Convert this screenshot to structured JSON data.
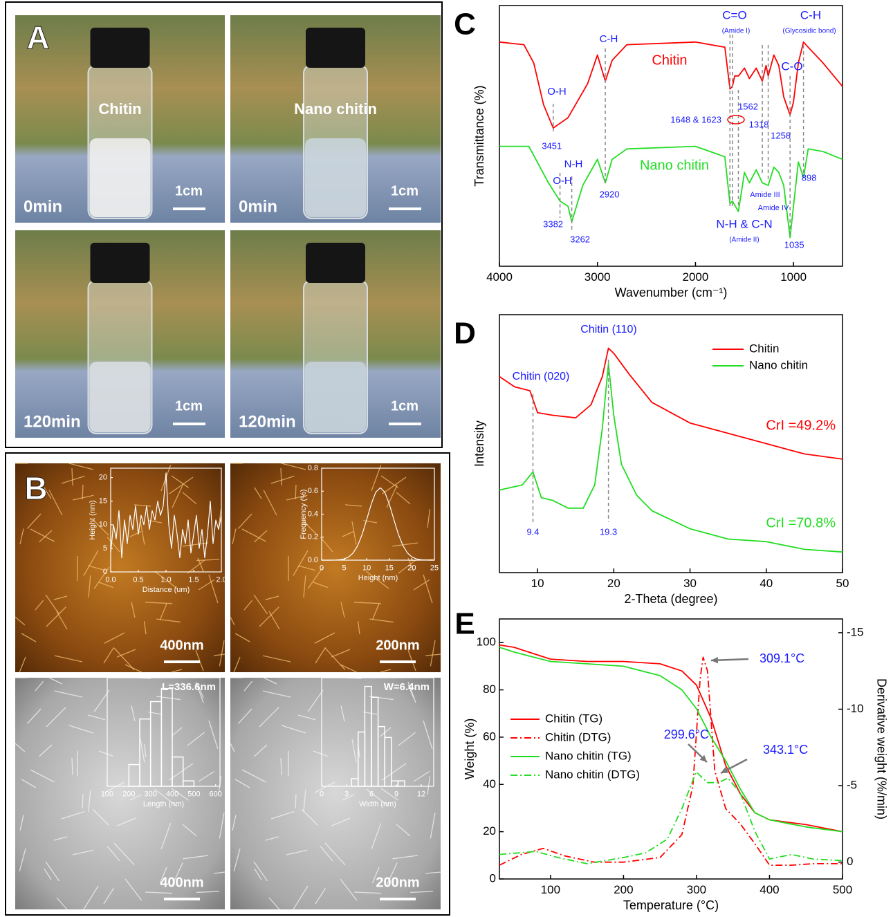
{
  "panels": {
    "A": {
      "panel": "A",
      "tiles": [
        {
          "label": "Chitin",
          "time": "0min",
          "scale": "1cm"
        },
        {
          "label": "Nano  chitin",
          "time": "0min",
          "scale": "1cm"
        },
        {
          "time": "120min",
          "scale": "1cm"
        },
        {
          "time": "120min",
          "scale": "1cm"
        }
      ]
    },
    "B": {
      "panel": "B",
      "tiles": [
        {
          "scale": "400nm"
        },
        {
          "scale": "200nm"
        },
        {
          "scale": "400nm"
        },
        {
          "scale": "200nm"
        }
      ]
    }
  },
  "chart_data": [
    {
      "type": "line",
      "panel": "C",
      "x_label": "Wavenumber (cm⁻¹)",
      "y_label": "Transmittance (%)",
      "xlim": [
        4000,
        500
      ],
      "xticks": [
        4000,
        3000,
        2000,
        1000
      ],
      "ylim": [
        0,
        100
      ],
      "yticks": [],
      "series": [
        {
          "name": "Chitin",
          "color": "#ff0000",
          "x": [
            4000,
            3750,
            3650,
            3550,
            3451,
            3300,
            3100,
            3000,
            2920,
            2850,
            2700,
            2000,
            1700,
            1648,
            1623,
            1600,
            1562,
            1500,
            1450,
            1380,
            1318,
            1280,
            1258,
            1200,
            1150,
            1100,
            1035,
            1000,
            950,
            898,
            850,
            700,
            500
          ],
          "values": [
            86,
            85,
            78,
            62,
            53,
            57,
            70,
            81,
            71,
            79,
            85,
            86,
            84,
            68,
            69,
            73,
            73,
            76,
            72,
            76,
            71,
            77,
            73,
            81,
            77,
            65,
            58,
            63,
            78,
            86,
            84,
            78,
            69
          ]
        },
        {
          "name": "Nano chitin",
          "color": "#22dd22",
          "x": [
            4000,
            3700,
            3500,
            3382,
            3300,
            3262,
            3150,
            3000,
            2920,
            2850,
            2700,
            2000,
            1700,
            1648,
            1623,
            1562,
            1500,
            1450,
            1380,
            1318,
            1258,
            1200,
            1150,
            1100,
            1035,
            1000,
            950,
            898,
            850,
            700,
            500
          ],
          "values": [
            46,
            46,
            32,
            25,
            23,
            17,
            31,
            41,
            32,
            41,
            45,
            46,
            42,
            24,
            25,
            21,
            36,
            32,
            37,
            32,
            31,
            38,
            36,
            31,
            11,
            23,
            40,
            34,
            45,
            44,
            41
          ]
        }
      ],
      "peaks": [
        3451,
        3382,
        3262,
        2920,
        1562,
        1318,
        1258,
        1035,
        898
      ],
      "amide_I": {
        "values": [
          1648,
          1623
        ],
        "label": "1648 & 1623"
      },
      "annotations": [
        "O-H",
        "C-H",
        "C=O",
        "(Amide I)",
        "C-H",
        "(Glycosidic bond)",
        "C-O",
        "O-H",
        "N-H",
        "N-H & C-N",
        "(Amide II)",
        "Amide III",
        "Amide IV"
      ]
    },
    {
      "type": "line",
      "panel": "D",
      "x_label": "2-Theta (degree)",
      "y_label": "Intensity",
      "xlim": [
        5,
        50
      ],
      "xticks": [
        10,
        20,
        30,
        40,
        50
      ],
      "ylim": [
        0,
        100
      ],
      "yticks": [],
      "legend": "top-right",
      "series": [
        {
          "name": "Chitin",
          "color": "#ff0000",
          "x": [
            5,
            7,
            9,
            10,
            12,
            15,
            17,
            18.5,
            19.3,
            20,
            22,
            25,
            30,
            35,
            40,
            45,
            50
          ],
          "values": [
            76,
            72,
            70.5,
            62,
            61,
            60,
            65,
            76,
            87,
            85,
            77,
            66,
            58,
            54,
            50,
            46,
            44
          ]
        },
        {
          "name": "Nano chitin",
          "color": "#22dd22",
          "x": [
            5,
            8,
            9.4,
            10.5,
            12,
            14,
            16,
            17.5,
            18.5,
            19.3,
            20,
            21,
            23,
            25,
            30,
            35,
            40,
            45,
            50
          ],
          "values": [
            32,
            34,
            39,
            29,
            28,
            25,
            25,
            34,
            56,
            81,
            61,
            42,
            30,
            24,
            17,
            13,
            12,
            9,
            8
          ]
        }
      ],
      "peaks": [
        9.4,
        19.3
      ],
      "annotations": [
        "Chitin (020)",
        "Chitin (110)"
      ],
      "crystallinity": [
        "CrI =49.2%",
        "CrI =70.8%"
      ]
    },
    {
      "type": "line",
      "panel": "E",
      "x_label": "Temperature (°C)",
      "y_label": "Weight (%)",
      "y2_label": "Derivative weight (%/min)",
      "xlim": [
        30,
        500
      ],
      "xticks": [
        100,
        200,
        300,
        400,
        500
      ],
      "ylim": [
        0,
        110
      ],
      "yticks": [
        0,
        20,
        40,
        60,
        80,
        100
      ],
      "y2lim": [
        1.1,
        -15.9
      ],
      "y2ticks": [
        0,
        -5,
        -10,
        -15
      ],
      "legend": "center-left",
      "series": [
        {
          "name": "Chitin (TG)",
          "color": "#ff0000",
          "style": "solid",
          "x": [
            30,
            50,
            100,
            150,
            200,
            250,
            280,
            300,
            320,
            340,
            360,
            380,
            400,
            450,
            500
          ],
          "values": [
            99,
            98,
            93,
            92,
            92,
            91,
            88,
            82,
            68,
            48,
            36,
            28,
            25,
            23,
            20
          ]
        },
        {
          "name": "Chitin (DTG)",
          "color": "#ff0000",
          "style": "dash-dot",
          "axis": "y2",
          "x": [
            30,
            60,
            90,
            120,
            160,
            200,
            250,
            280,
            295,
            305,
            309.1,
            315,
            325,
            340,
            360,
            380,
            400,
            430,
            460,
            500
          ],
          "values": [
            0.2,
            -0.5,
            -0.9,
            -0.4,
            0,
            0,
            -0.3,
            -1.8,
            -5,
            -12,
            -13.4,
            -12.5,
            -6,
            -3.5,
            -2.5,
            -1.2,
            0.2,
            0.2,
            0.1,
            0.1
          ]
        },
        {
          "name": "Nano chitin (TG)",
          "color": "#22dd22",
          "style": "solid",
          "x": [
            30,
            50,
            100,
            150,
            200,
            250,
            280,
            300,
            320,
            340,
            360,
            380,
            400,
            450,
            500
          ],
          "values": [
            98,
            96,
            92,
            91,
            90,
            86,
            80,
            72,
            60,
            50,
            38,
            28,
            25,
            22,
            20
          ]
        },
        {
          "name": "Nano chitin (DTG)",
          "color": "#22dd22",
          "style": "dash-dot",
          "axis": "y2",
          "x": [
            30,
            80,
            110,
            150,
            200,
            230,
            260,
            280,
            299.6,
            315,
            330,
            343.1,
            360,
            380,
            400,
            430,
            460,
            500
          ],
          "values": [
            -0.5,
            -0.7,
            -0.3,
            0.1,
            -0.3,
            -0.6,
            -1.5,
            -3.5,
            -5.9,
            -5.2,
            -5.2,
            -5.5,
            -4.5,
            -2,
            -0.2,
            -0.5,
            -0.2,
            -0.1
          ]
        }
      ],
      "peaks": [
        {
          "value": 309.1,
          "label": "309.1°C"
        },
        {
          "value": 299.6,
          "label": "299.6°C"
        },
        {
          "value": 343.1,
          "label": "343.1°C"
        }
      ]
    },
    {
      "type": "line",
      "x_label": "Distance (um)",
      "y_label": "Height (nm)",
      "xlim": [
        0,
        2
      ],
      "xticks": [
        {
          "value": 0,
          "label": "0.0"
        },
        0.5,
        {
          "value": 1,
          "label": "1.0"
        },
        1.5,
        {
          "value": 2,
          "label": "2.0"
        }
      ],
      "ylim": [
        0,
        22
      ],
      "yticks": [
        0,
        5,
        10,
        15,
        20
      ],
      "color": "#ffffff",
      "x": [
        0,
        0.05,
        0.1,
        0.15,
        0.2,
        0.25,
        0.3,
        0.35,
        0.4,
        0.45,
        0.5,
        0.55,
        0.6,
        0.65,
        0.7,
        0.75,
        0.8,
        0.85,
        0.9,
        0.95,
        1,
        1.05,
        1.1,
        1.15,
        1.2,
        1.25,
        1.3,
        1.35,
        1.4,
        1.45,
        1.5,
        1.55,
        1.6,
        1.65,
        1.7,
        1.75,
        1.8,
        1.85,
        1.9,
        1.95,
        2
      ],
      "values": [
        4,
        10,
        7,
        13,
        3,
        11,
        6,
        12,
        9,
        14,
        8,
        12,
        10,
        14,
        9,
        13,
        11,
        15,
        12,
        14,
        21,
        10,
        5,
        12,
        8,
        3,
        9,
        6,
        11,
        4,
        8,
        12,
        5,
        9,
        3,
        8,
        15,
        6,
        11,
        9,
        12
      ]
    },
    {
      "type": "line",
      "x_label": "Height (nm)",
      "y_label": "Frequency (%)",
      "xlim": [
        0,
        25
      ],
      "xticks": [
        0,
        5,
        10,
        15,
        20,
        25
      ],
      "ylim": [
        0,
        0.8
      ],
      "yticks": [
        {
          "value": 0,
          "label": "0.0"
        },
        0.2,
        0.4,
        0.6,
        0.8
      ],
      "color": "#ffffff",
      "x": [
        0,
        1,
        2,
        3,
        4,
        5,
        6,
        7,
        8,
        9,
        10,
        11,
        12,
        13,
        14,
        15,
        16,
        17,
        18,
        19,
        20,
        21,
        22,
        23,
        24,
        25
      ],
      "values": [
        0,
        0,
        0,
        0.001,
        0.004,
        0.011,
        0.028,
        0.063,
        0.128,
        0.227,
        0.355,
        0.488,
        0.591,
        0.63,
        0.591,
        0.488,
        0.355,
        0.227,
        0.128,
        0.063,
        0.028,
        0.011,
        0.004,
        0.001,
        0,
        0
      ]
    },
    {
      "type": "histogram",
      "title": "L=336.6nm",
      "x_label": "Length (nm)",
      "xlim": [
        100,
        620
      ],
      "xticks": [
        100,
        200,
        300,
        400,
        500,
        600
      ],
      "ylim": [
        0,
        1
      ],
      "yticks": [],
      "color": "#ffffff",
      "bins": [
        200,
        250,
        300,
        350,
        400,
        450,
        500
      ],
      "values": [
        0.2,
        0.62,
        0.78,
        0.9,
        0.27,
        0.05
      ]
    },
    {
      "type": "histogram",
      "title": "W=6.4nm",
      "x_label": "Width (nm)",
      "xlim": [
        0,
        13.5
      ],
      "xticks": [
        0,
        3,
        6,
        9,
        12
      ],
      "ylim": [
        0,
        1
      ],
      "yticks": [],
      "color": "#ffffff",
      "bins": [
        3.6,
        4.4,
        5.2,
        6,
        6.8,
        7.6,
        8.4,
        9.2,
        10
      ],
      "values": [
        0.07,
        0.5,
        0.92,
        0.82,
        0.55,
        0.45,
        0.05,
        0.05
      ]
    }
  ]
}
